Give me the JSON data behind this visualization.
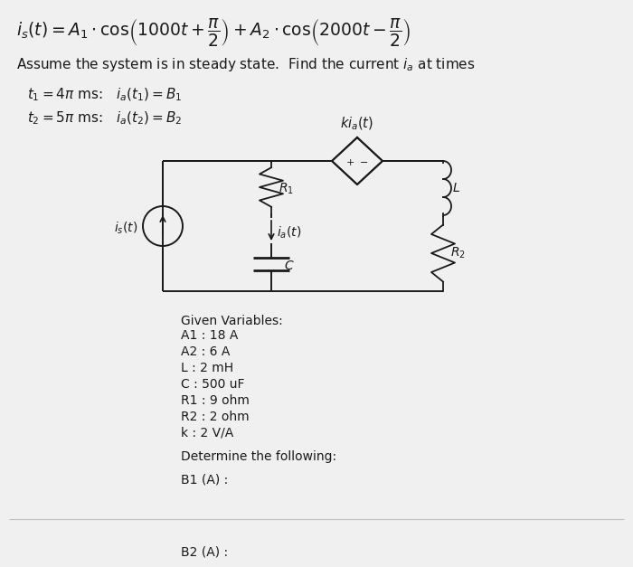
{
  "bg_color": "#f0f0f0",
  "text_color": "#1a1a1a",
  "circuit_color": "#1a1a1a",
  "eq_line": "$i_s(t) = A_1 \\cdot \\cos\\!\\left(1000t + \\dfrac{\\pi}{2}\\right) + A_2 \\cdot \\cos\\!\\left(2000t - \\dfrac{\\pi}{2}\\right)$",
  "line2": "Assume the system is in steady state.  Find the current $i_a$ at times",
  "line3a": "$t_1 = 4\\pi$ ms:   $i_a(t_1) = B_1$",
  "line3b": "$t_2 = 5\\pi$ ms:   $i_a(t_2) = B_2$",
  "given_label": "Given Variables:",
  "given_vars": [
    "A1 : 18 A",
    "A2 : 6 A",
    "L : 2 mH",
    "C : 500 uF",
    "R1 : 9 ohm",
    "R2 : 2 ohm",
    "k : 2 V/A"
  ],
  "determine": "Determine the following:",
  "b1_label": "B1 (A) :",
  "b2_label": "B2 (A) :"
}
